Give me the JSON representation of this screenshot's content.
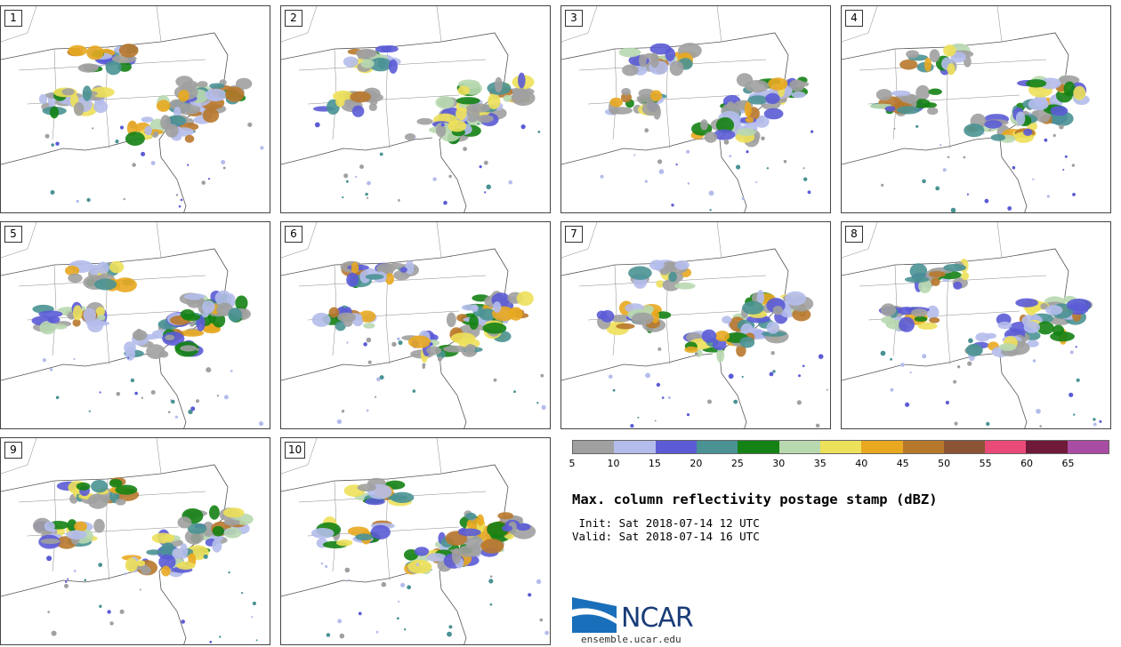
{
  "panels": [
    {
      "label": "1"
    },
    {
      "label": "2"
    },
    {
      "label": "3"
    },
    {
      "label": "4"
    },
    {
      "label": "5"
    },
    {
      "label": "6"
    },
    {
      "label": "7"
    },
    {
      "label": "8"
    },
    {
      "label": "9"
    },
    {
      "label": "10"
    }
  ],
  "colorbar": {
    "ticks": [
      "5",
      "10",
      "15",
      "20",
      "25",
      "30",
      "35",
      "40",
      "45",
      "50",
      "55",
      "60",
      "65"
    ],
    "colors": [
      "#a0a0a0",
      "#b4bceb",
      "#5b5bd6",
      "#4a9294",
      "#148214",
      "#b8d8b0",
      "#ede05a",
      "#e8a820",
      "#b8782c",
      "#8b5234",
      "#ea4a78",
      "#6e1a38",
      "#a84ca4"
    ]
  },
  "title": "Max. column reflectivity postage stamp (dBZ)",
  "init": " Init: Sat 2018-07-14 12 UTC",
  "valid": "Valid: Sat 2018-07-14 16 UTC",
  "logo": {
    "name": "NCAR",
    "url": "ensemble.ucar.edu"
  }
}
